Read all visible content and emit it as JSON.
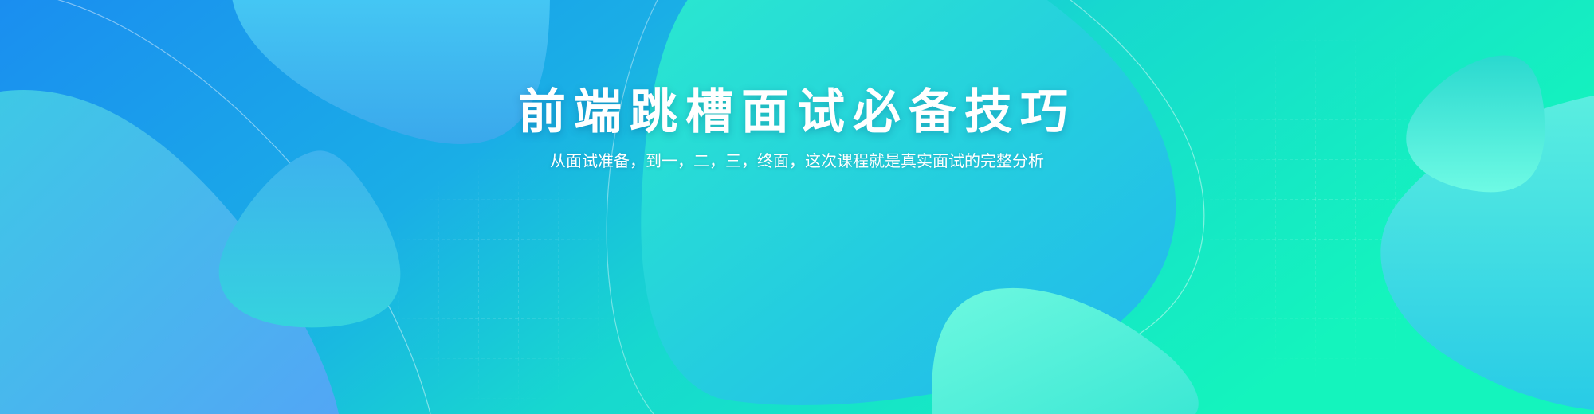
{
  "banner": {
    "title": "前端跳槽面试必备技巧",
    "subtitle": "从面试准备，到一，二，三，终面，这次课程就是真实面试的完整分析",
    "colors": {
      "background_start": "#1a8ff0",
      "background_end": "#14f2c0",
      "blob_blue": "#3fb6f0",
      "blob_teal": "#2ee3d0",
      "blob_mint": "#6ffae0",
      "text": "#ffffff"
    }
  }
}
